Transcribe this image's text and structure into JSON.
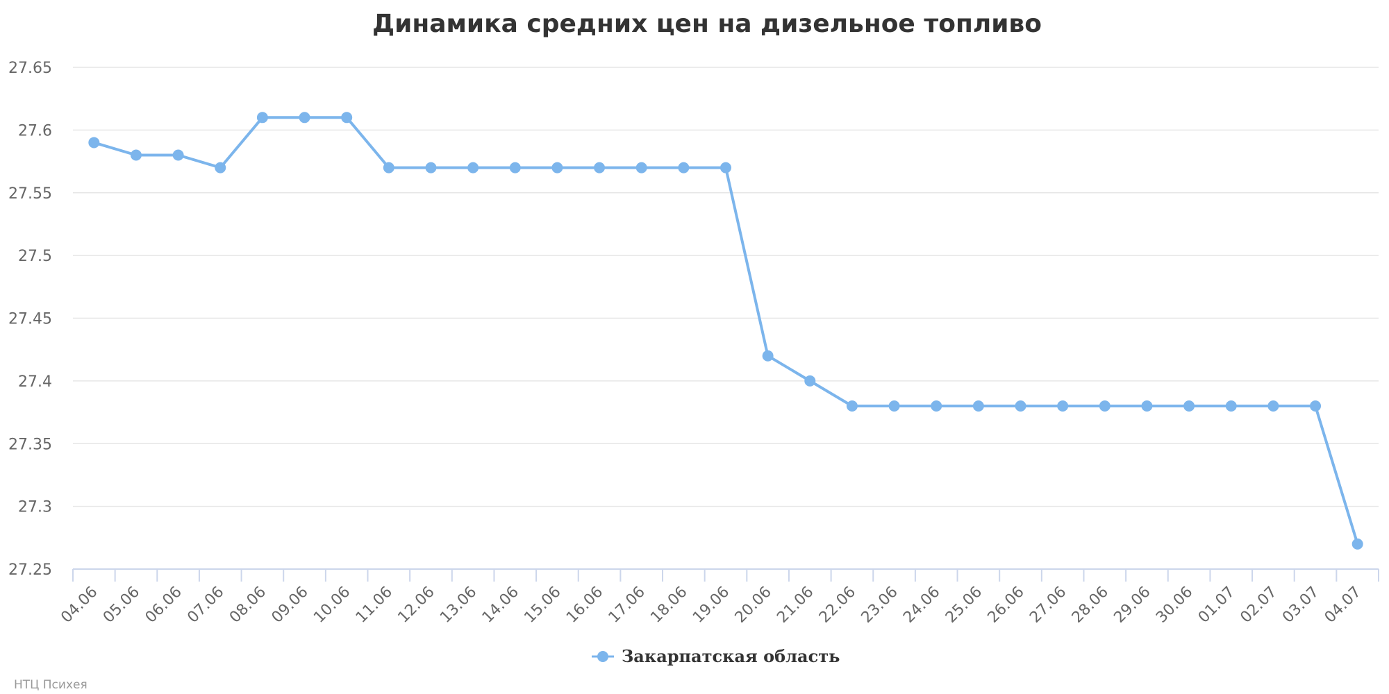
{
  "chart_data": {
    "type": "line",
    "title": "Динамика средних цен на дизельное топливо",
    "xlabel": "",
    "ylabel": "",
    "categories": [
      "04.06",
      "05.06",
      "06.06",
      "07.06",
      "08.06",
      "09.06",
      "10.06",
      "11.06",
      "12.06",
      "13.06",
      "14.06",
      "15.06",
      "16.06",
      "17.06",
      "18.06",
      "19.06",
      "20.06",
      "21.06",
      "22.06",
      "23.06",
      "24.06",
      "25.06",
      "26.06",
      "27.06",
      "28.06",
      "29.06",
      "30.06",
      "01.07",
      "02.07",
      "03.07",
      "04.07"
    ],
    "series": [
      {
        "name": "Закарпатская область",
        "color": "#7cb5ec",
        "values": [
          27.59,
          27.58,
          27.58,
          27.57,
          27.61,
          27.61,
          27.61,
          27.57,
          27.57,
          27.57,
          27.57,
          27.57,
          27.57,
          27.57,
          27.57,
          27.57,
          27.42,
          27.4,
          27.38,
          27.38,
          27.38,
          27.38,
          27.38,
          27.38,
          27.38,
          27.38,
          27.38,
          27.38,
          27.38,
          27.38,
          27.27
        ]
      }
    ],
    "ylim": [
      27.25,
      27.65
    ],
    "yticks": [
      "27.25",
      "27.3",
      "27.35",
      "27.4",
      "27.45",
      "27.5",
      "27.55",
      "27.6",
      "27.65"
    ],
    "grid": true,
    "legend_position": "bottom-center"
  },
  "credit": "НТЦ Психея"
}
